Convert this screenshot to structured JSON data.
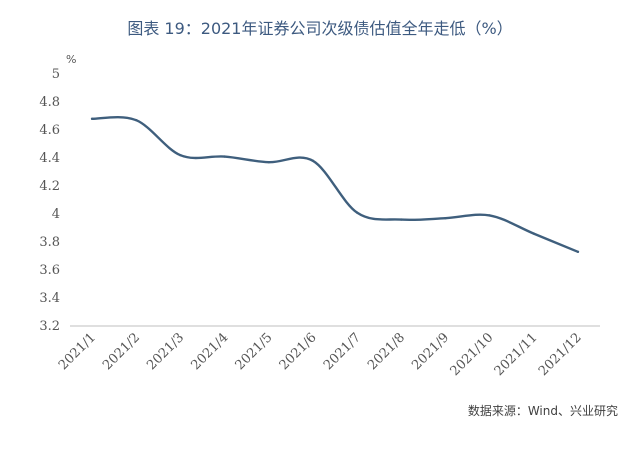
{
  "title": "图表 19：2021年证券公司次级债估值全年走低（%）",
  "source": "数据来源：Wind、兴业研究",
  "chart_data": {
    "type": "line",
    "title": "图表 19：2021年证券公司次级债估值全年走低（%）",
    "unit_label": "%",
    "categories": [
      "2021/1",
      "2021/2",
      "2021/3",
      "2021/4",
      "2021/5",
      "2021/6",
      "2021/7",
      "2021/8",
      "2021/9",
      "2021/10",
      "2021/11",
      "2021/12"
    ],
    "series": [
      {
        "values": [
          4.68,
          4.67,
          4.42,
          4.41,
          4.37,
          4.38,
          4.01,
          3.96,
          3.97,
          3.99,
          3.86,
          3.73
        ]
      }
    ],
    "y_ticks": [
      "5",
      "4.8",
      "4.6",
      "4.4",
      "4.2",
      "4",
      "3.8",
      "3.6",
      "3.4",
      "3.2"
    ],
    "ylim": [
      3.2,
      5
    ],
    "grid": false,
    "legend": "none",
    "line_color": "#3f5f7d"
  }
}
